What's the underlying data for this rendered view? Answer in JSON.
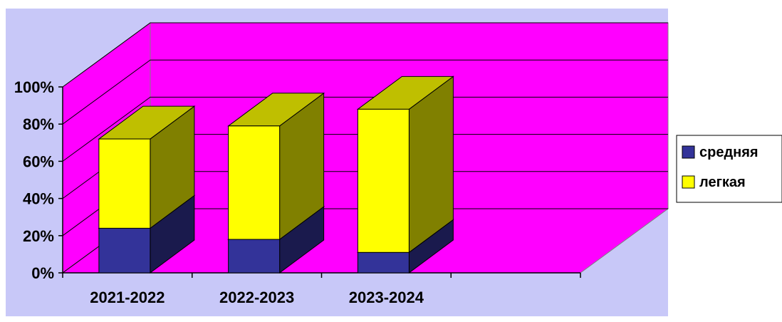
{
  "chart_data": {
    "type": "bar",
    "stacked": true,
    "three_d": true,
    "categories": [
      "2021-2022",
      "2022-2023",
      "2023-2024"
    ],
    "series": [
      {
        "name": "средняя",
        "values": [
          24,
          18,
          11
        ]
      },
      {
        "name": "легкая",
        "values": [
          48,
          61,
          77
        ]
      }
    ],
    "ylim": [
      0,
      100
    ],
    "yticks": [
      "0%",
      "20%",
      "40%",
      "60%",
      "80%",
      "100%"
    ],
    "y_tick_values": [
      0,
      20,
      40,
      60,
      80,
      100
    ],
    "grid": true,
    "legend_position": "right",
    "colors": {
      "plot_area": "#c8c8f8",
      "wall": "#ff00ff",
      "floor": "#ff00ff",
      "средняя": "#333399",
      "легкая": "#ffff00"
    }
  }
}
